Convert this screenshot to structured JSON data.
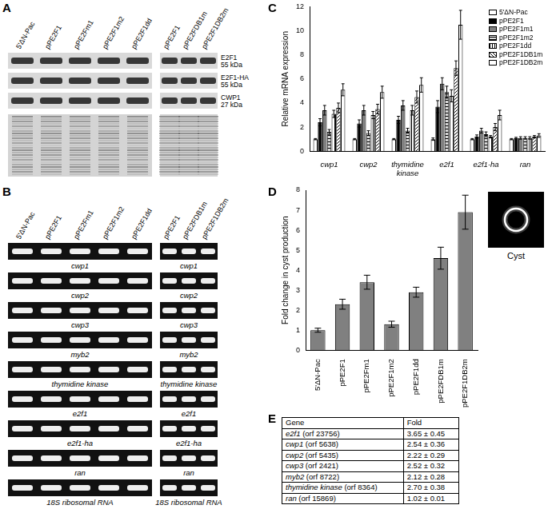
{
  "panel_labels": [
    "A",
    "B",
    "C",
    "D",
    "E"
  ],
  "panel_a": {
    "lanes_left": [
      "5'ΔN-Pac",
      "pPE2F1",
      "pPE2Fm1",
      "pPE2F1m2",
      "pPE2F1dd"
    ],
    "lanes_right": [
      "pPE2F1",
      "pPE2FDB1m",
      "pPE2F1DB2m"
    ],
    "blots": [
      {
        "name": "E2F1",
        "size": "55 kDa"
      },
      {
        "name": "E2F1-HA",
        "size": "55 kDa"
      },
      {
        "name": "CWP1",
        "size": "27 kDa"
      }
    ]
  },
  "panel_b": {
    "lanes_left": [
      "5'ΔN-Pac",
      "pPE2F1",
      "pPE2Fm1",
      "pPE2F1m2",
      "pPE2F1dd"
    ],
    "lanes_right": [
      "pPE2F1",
      "pPE2FDB1m",
      "pPE2F1DB2m"
    ],
    "rows": [
      "cwp1",
      "cwp2",
      "cwp3",
      "myb2",
      "thymidine kinase",
      "e2f1",
      "e2f1-ha",
      "ran",
      "18S ribosomal RNA"
    ]
  },
  "chart_data": [
    {
      "type": "bar",
      "y_label": "Relative mRNA expression",
      "categories": [
        "cwp1",
        "cwp2",
        "thymidine kinase",
        "e2f1",
        "e2f1-ha",
        "ran"
      ],
      "series": [
        {
          "name": "5'ΔN-Pac",
          "color": "#ffffff",
          "values": [
            1.0,
            1.0,
            1.0,
            1.0,
            1.0,
            1.0
          ],
          "errors": [
            0.05,
            0.05,
            0.05,
            0.1,
            0.05,
            0.05
          ]
        },
        {
          "name": "pPE2F1",
          "color": "#000000",
          "values": [
            2.4,
            2.3,
            2.6,
            3.7,
            1.2,
            1.1
          ],
          "errors": [
            0.3,
            0.3,
            0.3,
            0.5,
            0.15,
            0.05
          ]
        },
        {
          "name": "pPE2F1m1",
          "color": "#808080",
          "values": [
            3.4,
            3.4,
            3.8,
            5.6,
            1.7,
            1.1
          ],
          "errors": [
            0.4,
            0.4,
            0.4,
            0.5,
            0.2,
            0.1
          ]
        },
        {
          "name": "pPE2F1m2",
          "color": "#d9d9d9",
          "values": [
            1.6,
            1.5,
            1.7,
            4.9,
            1.4,
            1.1
          ],
          "errors": [
            0.2,
            0.2,
            0.2,
            0.5,
            0.2,
            0.1
          ]
        },
        {
          "name": "pPE2F1dd",
          "color": "#ffffff",
          "values": [
            3.1,
            3.0,
            3.4,
            4.6,
            1.2,
            1.1
          ],
          "errors": [
            0.3,
            0.3,
            0.4,
            0.5,
            0.1,
            0.1
          ]
        },
        {
          "name": "pPE2F1DB1m",
          "color": "#ffffff",
          "values": [
            3.6,
            3.5,
            4.5,
            6.9,
            2.0,
            1.2
          ],
          "errors": [
            0.4,
            0.4,
            0.5,
            0.6,
            0.3,
            0.1
          ]
        },
        {
          "name": "pPE2F1DB2m",
          "color": "#ffffff",
          "values": [
            5.1,
            4.9,
            5.5,
            10.5,
            3.0,
            1.3
          ],
          "errors": [
            0.5,
            0.5,
            0.6,
            1.2,
            0.4,
            0.15
          ]
        }
      ],
      "ylim": [
        0,
        12
      ],
      "yticks": [
        0,
        2,
        4,
        6,
        8,
        10,
        12
      ],
      "grid": false,
      "legend": "top-right"
    },
    {
      "type": "bar",
      "y_label": "Fold change in cyst production",
      "categories": [
        "5'ΔN-Pac",
        "pPE2F1",
        "pPE2Fm1",
        "pPE2F1m2",
        "pPE2F1dd",
        "pPE2FDB1m",
        "pPE2F1DB2m"
      ],
      "values": [
        1.0,
        2.3,
        3.4,
        1.3,
        2.9,
        4.6,
        6.9
      ],
      "errors": [
        0.1,
        0.25,
        0.35,
        0.15,
        0.25,
        0.55,
        0.85
      ],
      "color": "#808080",
      "ylim": [
        0,
        8
      ],
      "yticks": [
        0,
        1,
        2,
        3,
        4,
        5,
        6,
        7,
        8
      ],
      "grid": false
    }
  ],
  "panel_d_image": {
    "label": "Cyst"
  },
  "panel_e": {
    "header": [
      "Gene",
      "Fold"
    ],
    "rows": [
      {
        "gene": "e2f1",
        "orf": "(orf 23756)",
        "fold": "3.65 ± 0.45"
      },
      {
        "gene": "cwp1",
        "orf": "(orf 5638)",
        "fold": "2.54 ± 0.36"
      },
      {
        "gene": "cwp2",
        "orf": "(orf 5435)",
        "fold": "2.22 ± 0.29"
      },
      {
        "gene": "cwp3",
        "orf": "(orf 2421)",
        "fold": "2.52 ± 0.32"
      },
      {
        "gene": "myb2",
        "orf": "(orf 8722)",
        "fold": "2.12 ± 0.28"
      },
      {
        "gene": "thymidine kinase",
        "orf": "(orf 8364)",
        "fold": "2.70 ± 0.38"
      },
      {
        "gene": "ran",
        "orf": "(orf 15869)",
        "fold": "1.02 ± 0.01"
      }
    ]
  }
}
